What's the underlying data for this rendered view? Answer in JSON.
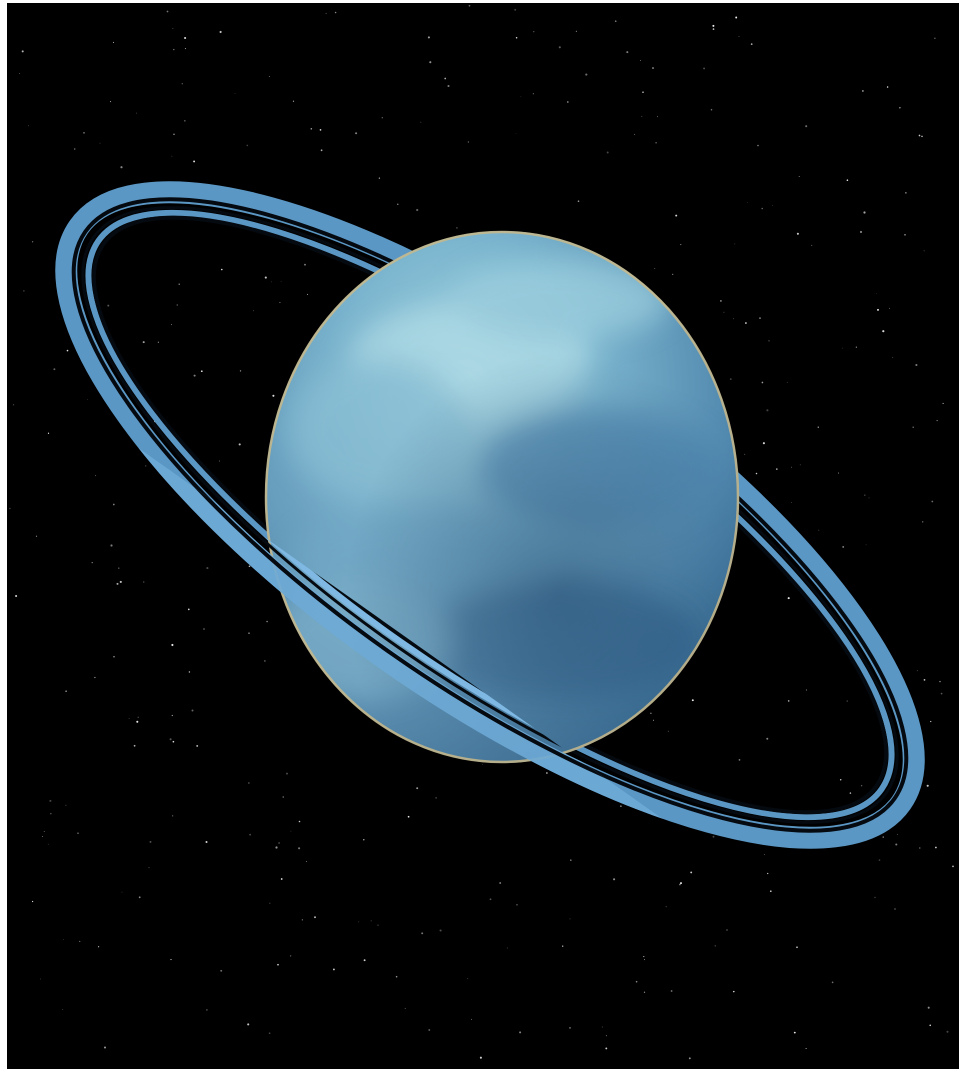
{
  "scene": {
    "subject": "ringed-ice-giant",
    "colors": {
      "sky": "#000000",
      "frame": "#ffffff",
      "planet_light": "#a9d9e4",
      "planet_mid": "#6aa7c3",
      "planet_dark": "#2e5f86",
      "planet_limb": "#c9b98a",
      "ring": "#5b97c4",
      "ring_front": "#7fb9e3",
      "ring_gap": "#050a10",
      "star": "#ffffff"
    }
  }
}
